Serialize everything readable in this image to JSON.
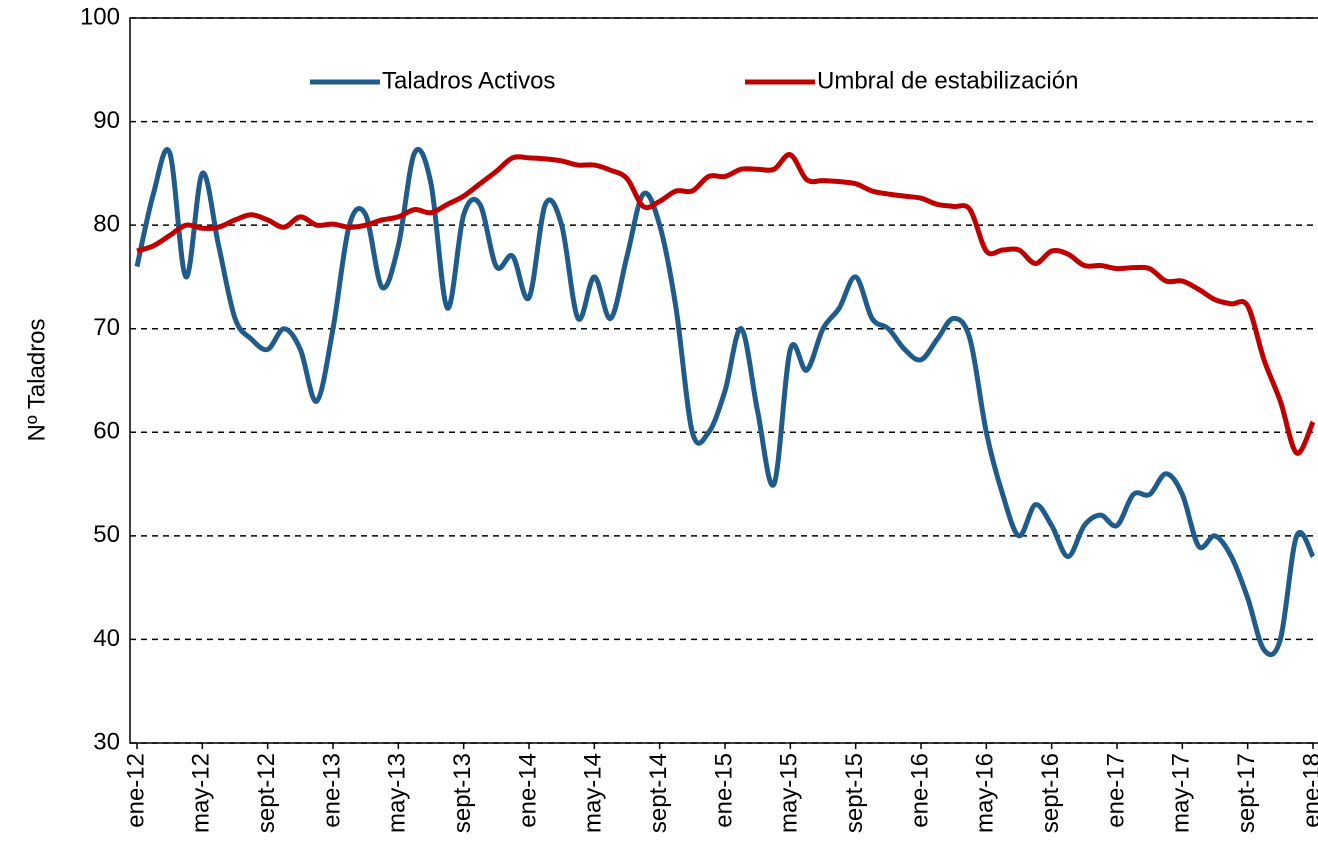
{
  "chart_data": {
    "type": "line",
    "y_label": "Nº Taladros",
    "categories": [
      "ene-12",
      null,
      null,
      null,
      "may-12",
      null,
      null,
      null,
      "sept-12",
      null,
      null,
      null,
      "ene-13",
      null,
      null,
      null,
      "may-13",
      null,
      null,
      null,
      "sept-13",
      null,
      null,
      null,
      "ene-14",
      null,
      null,
      null,
      "may-14",
      null,
      null,
      null,
      "sept-14",
      null,
      null,
      null,
      "ene-15",
      null,
      null,
      null,
      "may-15",
      null,
      null,
      null,
      "sept-15",
      null,
      null,
      null,
      "ene-16",
      null,
      null,
      null,
      "may-16",
      null,
      null,
      null,
      "sept-16",
      null,
      null,
      null,
      "ene-17",
      null,
      null,
      null,
      "may-17",
      null,
      null,
      null,
      "sept-17",
      null,
      null,
      null,
      "ene-18"
    ],
    "series": [
      {
        "name": "Taladros Activos",
        "color": "#1f5c8b",
        "values": [
          76,
          83,
          87,
          75,
          85,
          78,
          71,
          69,
          68,
          70,
          68,
          63,
          70,
          80,
          81,
          74,
          78,
          87,
          84,
          72,
          81,
          82,
          76,
          77,
          73,
          82,
          80,
          71,
          75,
          71,
          77,
          83,
          80,
          72,
          60,
          60,
          64,
          70,
          62,
          55,
          68,
          66,
          70,
          72,
          75,
          71,
          70,
          68,
          67,
          69,
          71,
          69,
          60,
          54,
          50,
          53,
          51,
          48,
          51,
          52,
          51,
          54,
          54,
          56,
          54,
          49,
          50,
          48,
          44,
          39,
          40,
          50,
          48
        ]
      },
      {
        "name": "Umbral de estabilización",
        "color": "#c00000",
        "values": [
          77.5,
          78,
          79,
          80,
          79.7,
          79.8,
          80.5,
          81,
          80.5,
          79.8,
          80.8,
          80,
          80.1,
          79.8,
          80,
          80.5,
          80.8,
          81.5,
          81.2,
          82,
          82.8,
          84,
          85.2,
          86.5,
          86.5,
          86.4,
          86.2,
          85.8,
          85.8,
          85.3,
          84.5,
          81.8,
          82.3,
          83.3,
          83.3,
          84.7,
          84.7,
          85.4,
          85.4,
          85.4,
          86.8,
          84.4,
          84.3,
          84.2,
          84,
          83.3,
          83,
          82.8,
          82.6,
          82,
          81.8,
          81.5,
          77.5,
          77.6,
          77.6,
          76.3,
          77.5,
          77.2,
          76.1,
          76.1,
          75.8,
          75.9,
          75.8,
          74.6,
          74.6,
          73.8,
          72.8,
          72.4,
          72.2,
          67,
          63,
          58,
          61
        ]
      }
    ],
    "ylim": [
      30,
      100
    ],
    "yticks": [
      30,
      40,
      50,
      60,
      70,
      80,
      90,
      100
    ],
    "grid": true,
    "legend": "top"
  }
}
